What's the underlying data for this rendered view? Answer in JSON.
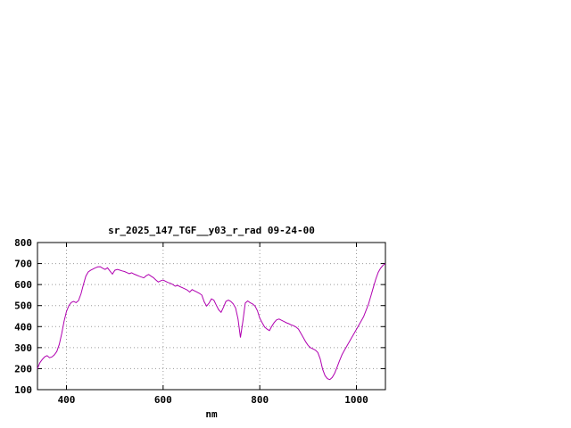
{
  "window": {
    "background": "#ffffff"
  },
  "chart_data": {
    "type": "line",
    "title": "sr_2025_147_TGF__y03_r_rad 09-24-00",
    "xlabel": "nm",
    "ylabel": "",
    "xlim": [
      340,
      1060
    ],
    "ylim": [
      100,
      800
    ],
    "x_ticks": [
      400,
      600,
      800,
      1000
    ],
    "y_ticks": [
      100,
      200,
      300,
      400,
      500,
      600,
      700,
      800
    ],
    "grid": true,
    "legend": "none",
    "line_color": "#b000b0",
    "axis_color": "#000000",
    "grid_color": "#9a9a9a",
    "series": [
      {
        "name": "sr_2025_147_TGF__y03_r_rad",
        "points": [
          [
            340,
            200
          ],
          [
            345,
            228
          ],
          [
            350,
            244
          ],
          [
            355,
            256
          ],
          [
            360,
            262
          ],
          [
            365,
            252
          ],
          [
            370,
            256
          ],
          [
            375,
            266
          ],
          [
            380,
            282
          ],
          [
            385,
            315
          ],
          [
            390,
            365
          ],
          [
            395,
            425
          ],
          [
            400,
            472
          ],
          [
            405,
            500
          ],
          [
            410,
            515
          ],
          [
            415,
            520
          ],
          [
            420,
            514
          ],
          [
            425,
            524
          ],
          [
            430,
            556
          ],
          [
            435,
            600
          ],
          [
            440,
            640
          ],
          [
            445,
            660
          ],
          [
            450,
            668
          ],
          [
            455,
            674
          ],
          [
            460,
            680
          ],
          [
            465,
            684
          ],
          [
            470,
            685
          ],
          [
            475,
            678
          ],
          [
            480,
            672
          ],
          [
            485,
            680
          ],
          [
            490,
            664
          ],
          [
            495,
            650
          ],
          [
            500,
            668
          ],
          [
            505,
            672
          ],
          [
            510,
            669
          ],
          [
            515,
            665
          ],
          [
            520,
            662
          ],
          [
            525,
            657
          ],
          [
            530,
            652
          ],
          [
            535,
            656
          ],
          [
            540,
            650
          ],
          [
            545,
            645
          ],
          [
            550,
            640
          ],
          [
            555,
            636
          ],
          [
            560,
            632
          ],
          [
            565,
            642
          ],
          [
            570,
            648
          ],
          [
            575,
            640
          ],
          [
            580,
            633
          ],
          [
            585,
            622
          ],
          [
            590,
            612
          ],
          [
            595,
            618
          ],
          [
            600,
            622
          ],
          [
            605,
            616
          ],
          [
            610,
            610
          ],
          [
            615,
            606
          ],
          [
            620,
            600
          ],
          [
            625,
            592
          ],
          [
            630,
            596
          ],
          [
            635,
            590
          ],
          [
            640,
            585
          ],
          [
            645,
            580
          ],
          [
            650,
            574
          ],
          [
            655,
            564
          ],
          [
            660,
            576
          ],
          [
            665,
            570
          ],
          [
            670,
            564
          ],
          [
            675,
            558
          ],
          [
            680,
            550
          ],
          [
            685,
            518
          ],
          [
            690,
            498
          ],
          [
            695,
            512
          ],
          [
            700,
            532
          ],
          [
            705,
            526
          ],
          [
            710,
            502
          ],
          [
            715,
            480
          ],
          [
            720,
            468
          ],
          [
            725,
            492
          ],
          [
            730,
            520
          ],
          [
            735,
            526
          ],
          [
            740,
            520
          ],
          [
            745,
            508
          ],
          [
            750,
            488
          ],
          [
            755,
            436
          ],
          [
            760,
            348
          ],
          [
            765,
            425
          ],
          [
            770,
            512
          ],
          [
            775,
            522
          ],
          [
            780,
            514
          ],
          [
            785,
            508
          ],
          [
            790,
            498
          ],
          [
            795,
            476
          ],
          [
            800,
            440
          ],
          [
            805,
            418
          ],
          [
            810,
            398
          ],
          [
            815,
            388
          ],
          [
            820,
            381
          ],
          [
            825,
            402
          ],
          [
            830,
            420
          ],
          [
            835,
            432
          ],
          [
            840,
            436
          ],
          [
            845,
            430
          ],
          [
            850,
            424
          ],
          [
            855,
            418
          ],
          [
            860,
            414
          ],
          [
            865,
            408
          ],
          [
            870,
            404
          ],
          [
            875,
            398
          ],
          [
            880,
            388
          ],
          [
            885,
            368
          ],
          [
            890,
            348
          ],
          [
            895,
            328
          ],
          [
            900,
            311
          ],
          [
            905,
            300
          ],
          [
            910,
            294
          ],
          [
            915,
            288
          ],
          [
            920,
            277
          ],
          [
            925,
            247
          ],
          [
            930,
            197
          ],
          [
            935,
            167
          ],
          [
            940,
            152
          ],
          [
            945,
            148
          ],
          [
            950,
            158
          ],
          [
            955,
            178
          ],
          [
            960,
            207
          ],
          [
            965,
            237
          ],
          [
            970,
            266
          ],
          [
            975,
            287
          ],
          [
            980,
            307
          ],
          [
            985,
            327
          ],
          [
            990,
            347
          ],
          [
            995,
            367
          ],
          [
            1000,
            387
          ],
          [
            1005,
            407
          ],
          [
            1010,
            427
          ],
          [
            1015,
            448
          ],
          [
            1020,
            477
          ],
          [
            1025,
            507
          ],
          [
            1030,
            547
          ],
          [
            1035,
            587
          ],
          [
            1040,
            626
          ],
          [
            1045,
            658
          ],
          [
            1050,
            678
          ],
          [
            1055,
            692
          ],
          [
            1060,
            700
          ]
        ]
      }
    ]
  }
}
